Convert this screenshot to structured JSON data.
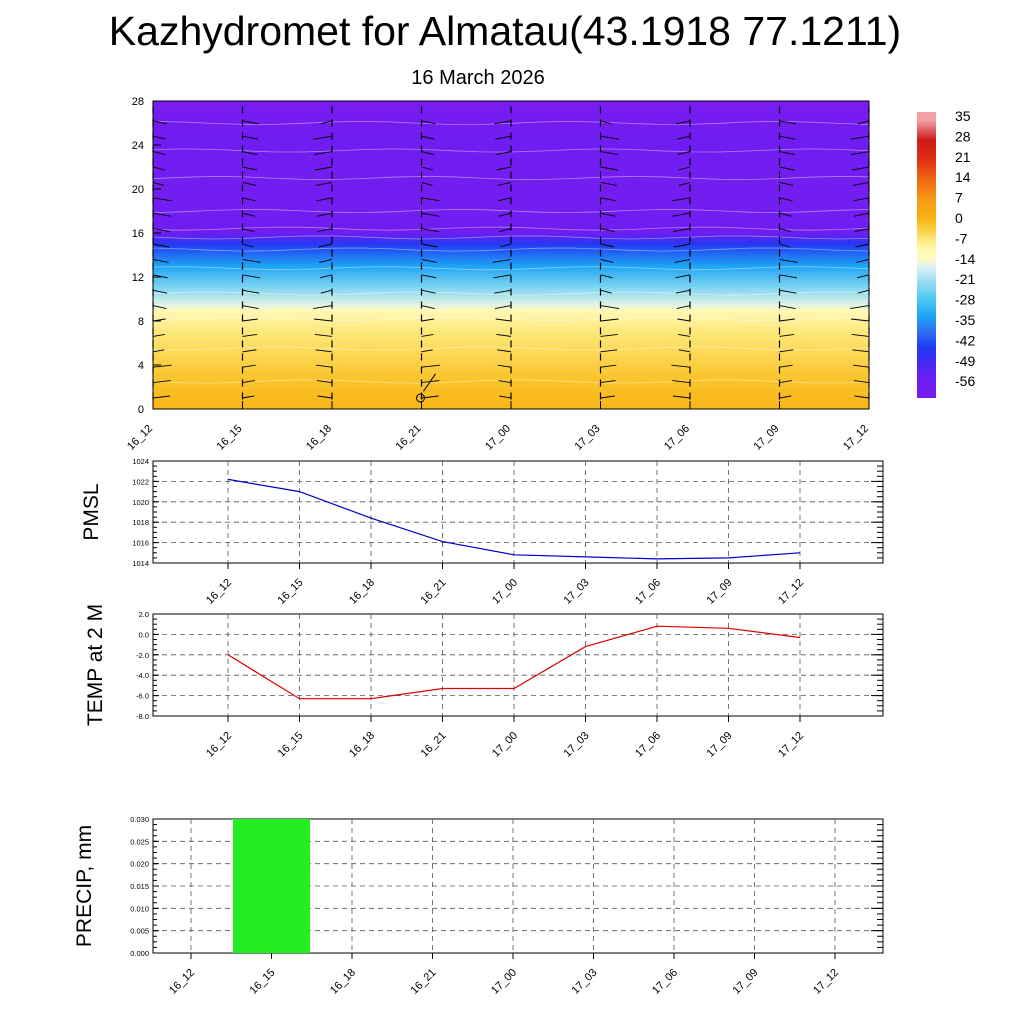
{
  "title": "Kazhydromet for Almatau(43.1918 77.1211)",
  "subtitle": "16 March 2026",
  "chart_data": [
    {
      "type": "heatmap",
      "name": "vertical-cross-section",
      "ylabel": "",
      "ylim": [
        0,
        28
      ],
      "yticks": [
        "0",
        "4",
        "8",
        "12",
        "16",
        "20",
        "24",
        "28"
      ],
      "x": [
        "16_12",
        "16_15",
        "16_18",
        "16_21",
        "17_00",
        "17_03",
        "17_06",
        "17_09",
        "17_12"
      ],
      "colorbar_labels": [
        "35",
        "28",
        "21",
        "14",
        "7",
        "0",
        "-7",
        "-14",
        "-21",
        "-28",
        "-35",
        "-42",
        "-49",
        "-56"
      ],
      "temperature_profile": [
        {
          "level": 0,
          "temp": 0
        },
        {
          "level": 3,
          "temp": -2
        },
        {
          "level": 7,
          "temp": -7
        },
        {
          "level": 9,
          "temp": -12
        },
        {
          "level": 9.4,
          "temp": -16
        },
        {
          "level": 11,
          "temp": -24
        },
        {
          "level": 13,
          "temp": -34
        },
        {
          "level": 15,
          "temp": -46
        },
        {
          "level": 16,
          "temp": -58
        },
        {
          "level": 20,
          "temp": -60
        },
        {
          "level": 24,
          "temp": -58
        },
        {
          "level": 28,
          "temp": -62
        }
      ]
    },
    {
      "type": "line",
      "name": "pmsl",
      "ylabel": "PMSL",
      "ylim": [
        1014,
        1024
      ],
      "yticks": [
        "1014",
        "1016",
        "1018",
        "1020",
        "1022",
        "1024"
      ],
      "x": [
        "16_12",
        "16_15",
        "16_18",
        "16_21",
        "17_00",
        "17_03",
        "17_06",
        "17_09",
        "17_12"
      ],
      "values": [
        1022.2,
        1021.0,
        1018.4,
        1016.1,
        1014.8,
        1014.6,
        1014.4,
        1014.5,
        1015.0
      ],
      "color": "#0000cc"
    },
    {
      "type": "line",
      "name": "temp-2m",
      "ylabel": "TEMP at 2 M",
      "ylim": [
        -8,
        2
      ],
      "yticks": [
        "-8.0",
        "-6.0",
        "-4.0",
        "-2.0",
        "0.0",
        "2.0"
      ],
      "x": [
        "16_12",
        "16_15",
        "16_18",
        "16_21",
        "17_00",
        "17_03",
        "17_06",
        "17_09",
        "17_12"
      ],
      "values": [
        -2.0,
        -6.3,
        -6.3,
        -5.3,
        -5.3,
        -1.2,
        0.8,
        0.6,
        -0.3
      ],
      "color": "#dd0000"
    },
    {
      "type": "bar",
      "name": "precip",
      "ylabel": "PRECIP, mm",
      "ylim": [
        0,
        0.03
      ],
      "yticks": [
        "0.000",
        "0.005",
        "0.010",
        "0.015",
        "0.020",
        "0.025",
        "0.030"
      ],
      "x": [
        "16_12",
        "16_15",
        "16_18",
        "16_21",
        "17_00",
        "17_03",
        "17_06",
        "17_09",
        "17_12"
      ],
      "values": [
        0,
        0.03,
        0,
        0,
        0,
        0,
        0,
        0,
        0
      ],
      "color": "#22ee22"
    }
  ]
}
